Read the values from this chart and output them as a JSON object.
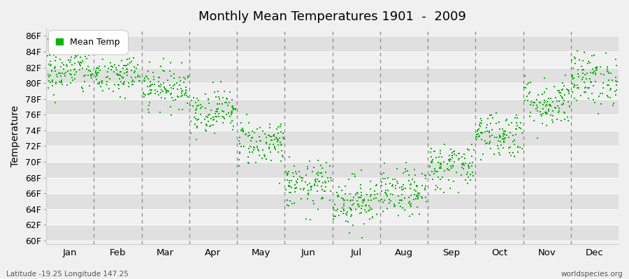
{
  "title": "Monthly Mean Temperatures 1901  -  2009",
  "ylabel": "Temperature",
  "xlabel_labels": [
    "Jan",
    "Feb",
    "Mar",
    "Apr",
    "May",
    "Jun",
    "Jul",
    "Aug",
    "Sep",
    "Oct",
    "Nov",
    "Dec"
  ],
  "ytick_labels": [
    "60F",
    "62F",
    "64F",
    "66F",
    "68F",
    "70F",
    "72F",
    "74F",
    "76F",
    "78F",
    "80F",
    "82F",
    "84F",
    "86F"
  ],
  "ytick_values": [
    60,
    62,
    64,
    66,
    68,
    70,
    72,
    74,
    76,
    78,
    80,
    82,
    84,
    86
  ],
  "ylim": [
    59.5,
    87.0
  ],
  "dot_color": "#00BB00",
  "dot_size": 3.5,
  "background_color": "#f0f0f0",
  "plot_bg_light": "#f0f0f0",
  "plot_bg_dark": "#e0e0e0",
  "subtitle_left": "Latitude -19.25 Longitude 147.25",
  "subtitle_right": "worldspecies.org",
  "legend_label": "Mean Temp",
  "n_years": 109,
  "monthly_means": [
    81.5,
    81.0,
    79.5,
    76.5,
    72.5,
    67.0,
    65.0,
    66.0,
    69.5,
    73.5,
    77.5,
    80.5
  ],
  "monthly_stds": [
    1.5,
    1.4,
    1.3,
    1.4,
    1.5,
    1.5,
    1.6,
    1.5,
    1.5,
    1.5,
    1.6,
    1.7
  ]
}
